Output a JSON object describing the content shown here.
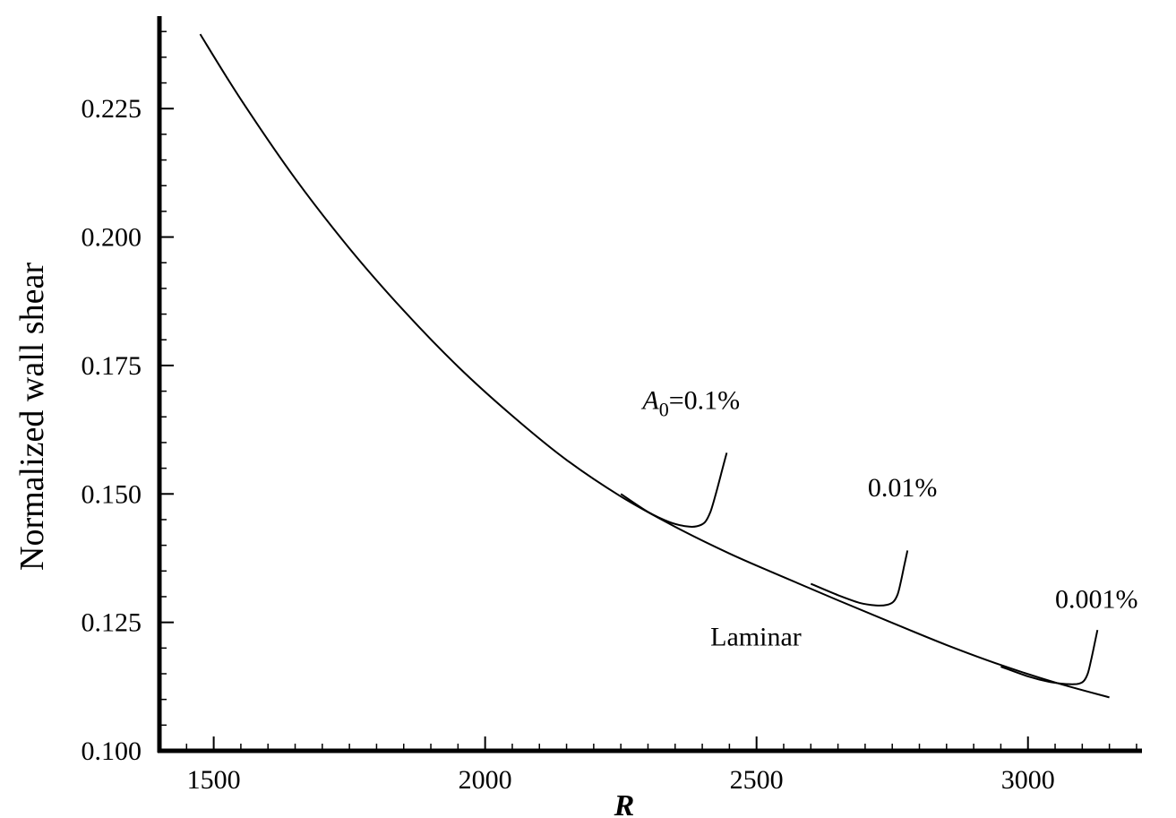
{
  "chart_data": {
    "type": "line",
    "title": "",
    "xlabel": "R",
    "ylabel": "Normalized wall shear",
    "xlim": [
      1400,
      3210
    ],
    "ylim": [
      0.1,
      0.243
    ],
    "xticks": [
      1500,
      2000,
      2500,
      3000
    ],
    "xtick_labels": [
      "1500",
      "2000",
      "2500",
      "3000"
    ],
    "yticks": [
      0.1,
      0.125,
      0.15,
      0.175,
      0.2,
      0.225
    ],
    "ytick_labels": [
      "0.100",
      "0.125",
      "0.150",
      "0.175",
      "0.200",
      "0.225"
    ],
    "grid": false,
    "legend": "none",
    "series": [
      {
        "name": "Laminar",
        "x": [
          1475,
          1550,
          1650,
          1750,
          1850,
          1950,
          2050,
          2150,
          2250,
          2350,
          2450,
          2550,
          2650,
          2750,
          2850,
          2950,
          3050,
          3150
        ],
        "y": [
          0.2395,
          0.2268,
          0.2114,
          0.1978,
          0.1857,
          0.1748,
          0.1652,
          0.1566,
          0.1495,
          0.1436,
          0.1384,
          0.1338,
          0.1293,
          0.1249,
          0.1206,
          0.1167,
          0.1133,
          0.1104
        ]
      },
      {
        "name": "A0 = 0.1%",
        "x": [
          2250,
          2300,
          2340,
          2370,
          2390,
          2405,
          2415,
          2425,
          2435,
          2445
        ],
        "y": [
          0.15,
          0.1465,
          0.1445,
          0.1437,
          0.1437,
          0.1445,
          0.1465,
          0.15,
          0.154,
          0.158
        ]
      },
      {
        "name": "0.01%",
        "x": [
          2600,
          2650,
          2690,
          2720,
          2740,
          2752,
          2760,
          2766,
          2772,
          2778
        ],
        "y": [
          0.1325,
          0.1303,
          0.1288,
          0.1283,
          0.1284,
          0.129,
          0.1305,
          0.133,
          0.136,
          0.139
        ]
      },
      {
        "name": "0.001%",
        "x": [
          2950,
          3000,
          3040,
          3070,
          3090,
          3102,
          3110,
          3116,
          3122,
          3128
        ],
        "y": [
          0.1164,
          0.1145,
          0.1134,
          0.113,
          0.113,
          0.1135,
          0.115,
          0.1175,
          0.1205,
          0.1235
        ]
      }
    ],
    "annotations": [
      {
        "label_prefix": "A",
        "label_sub": "0",
        "text": "=0.1%",
        "x": 2290,
        "y": 0.1665
      },
      {
        "text": "0.01%",
        "x": 2705,
        "y": 0.1495
      },
      {
        "text": "0.001%",
        "x": 3050,
        "y": 0.1278
      },
      {
        "text": "Laminar",
        "x": 2415,
        "y": 0.1205
      }
    ]
  }
}
